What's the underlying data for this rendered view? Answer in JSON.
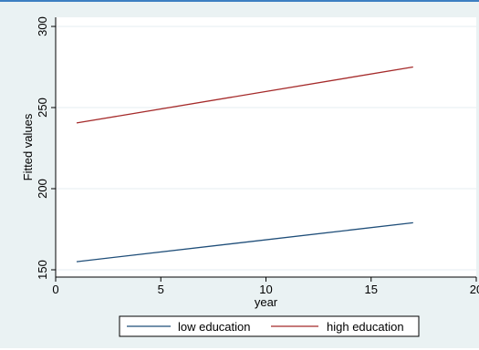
{
  "chart_data": {
    "type": "line",
    "title": "",
    "xlabel": "year",
    "ylabel": "Fitted values",
    "xlim": [
      0,
      20
    ],
    "ylim": [
      150,
      300
    ],
    "xticks": [
      0,
      5,
      10,
      15,
      20
    ],
    "yticks": [
      150,
      200,
      250,
      300
    ],
    "grid": true,
    "legend_position": "bottom",
    "series": [
      {
        "name": "low education",
        "color": "#1f4e79",
        "x": [
          1,
          17
        ],
        "y": [
          155,
          179
        ]
      },
      {
        "name": "high education",
        "color": "#a52a2a",
        "x": [
          1,
          17
        ],
        "y": [
          240.5,
          275
        ]
      }
    ]
  }
}
